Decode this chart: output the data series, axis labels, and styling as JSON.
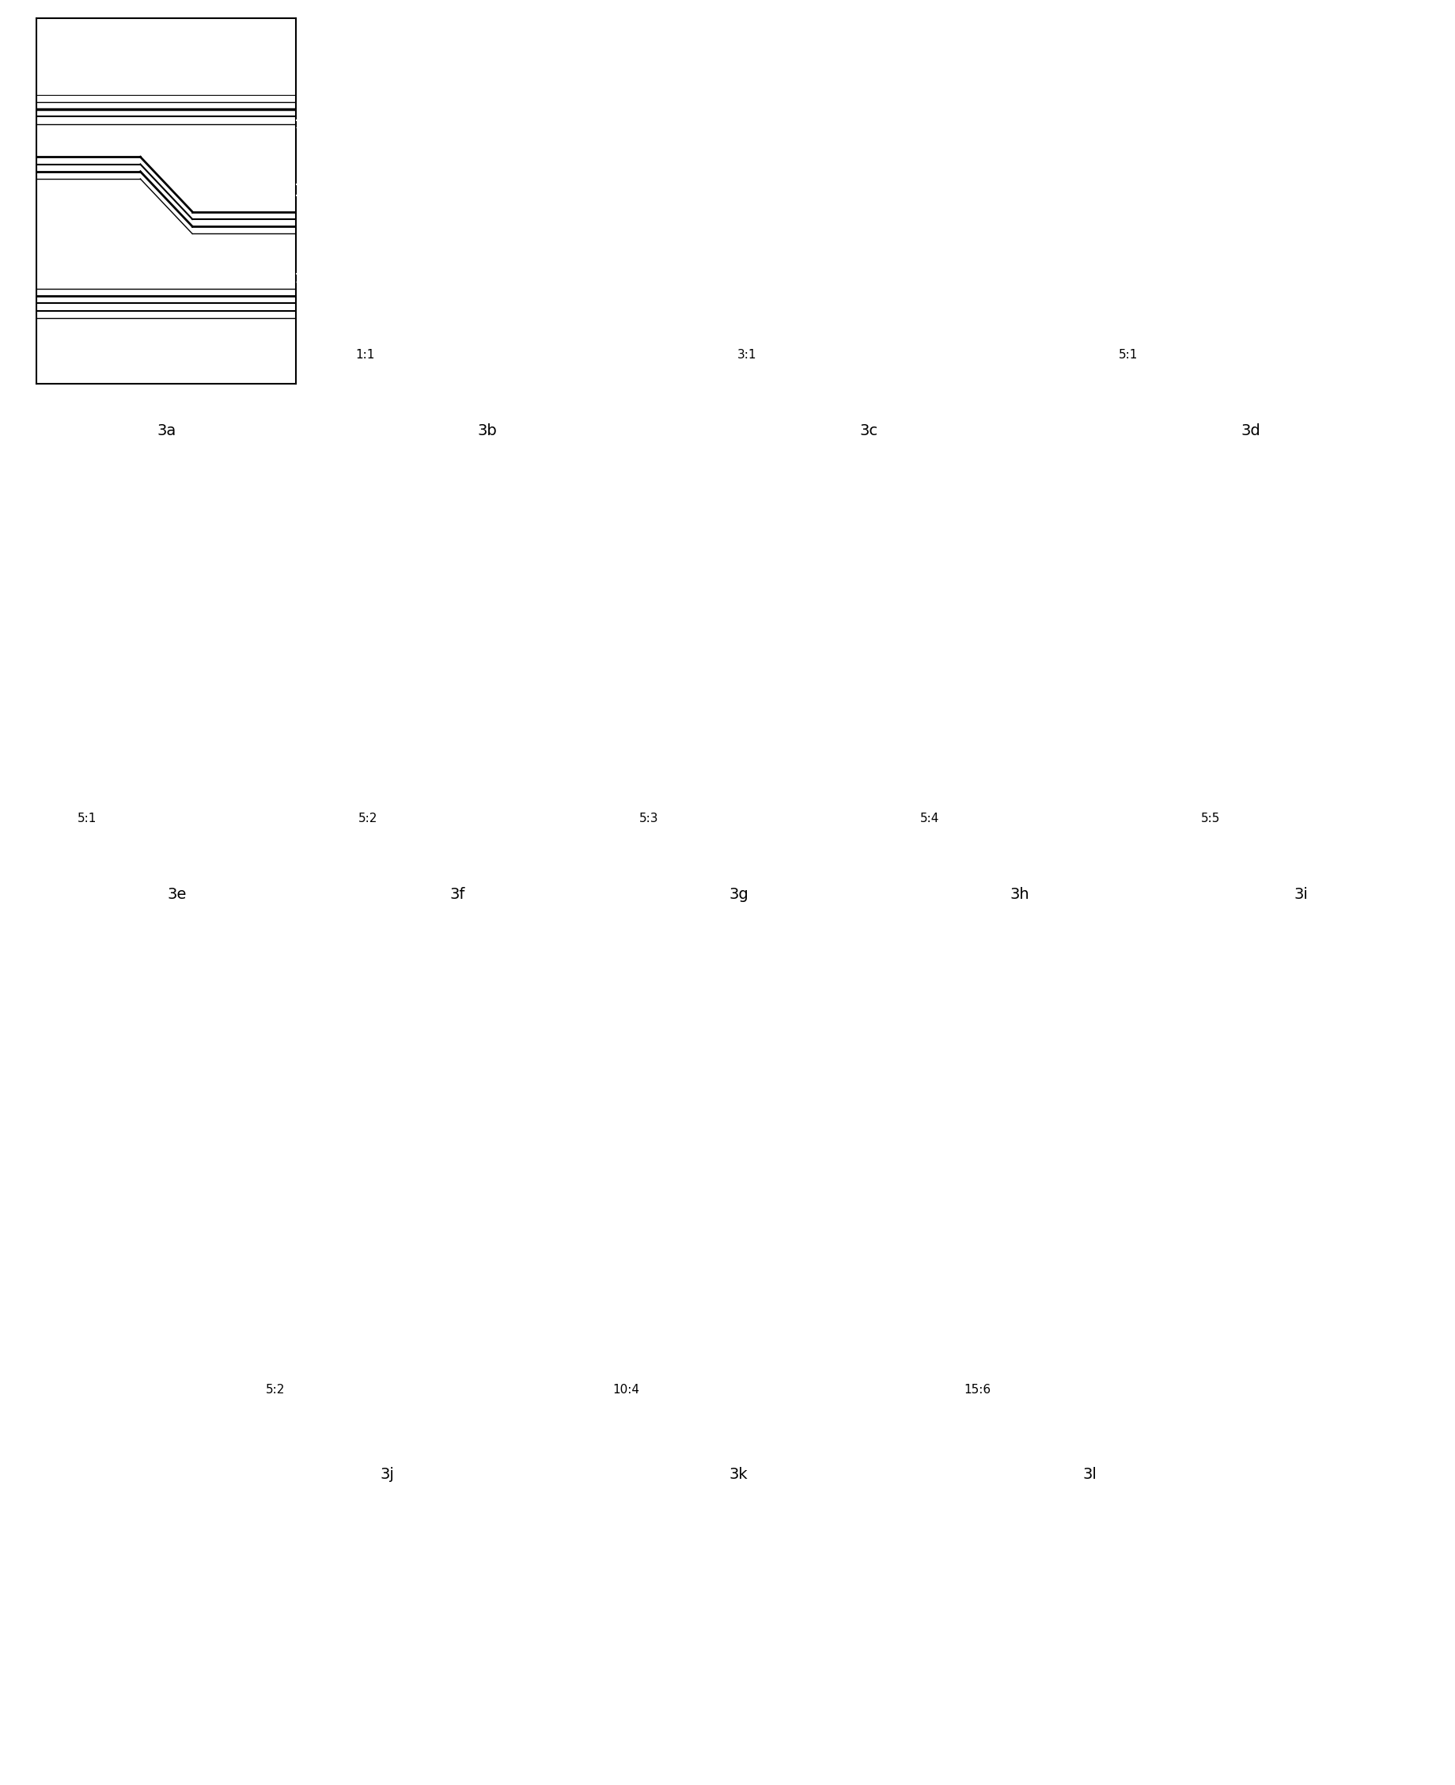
{
  "figure_width": 18.4,
  "figure_height": 22.56,
  "bg_color": "#ffffff",
  "row1_labels": [
    "3a",
    "3b",
    "3c",
    "3d"
  ],
  "row2_labels": [
    "3e",
    "3f",
    "3g",
    "3h",
    "3i"
  ],
  "row3_labels": [
    "3j",
    "3k",
    "3l"
  ],
  "row1_ratios": [
    null,
    "1:1",
    "3:1",
    "5:1"
  ],
  "row2_ratios": [
    "5:1",
    "5:2",
    "5:3",
    "5:4",
    "5:5"
  ],
  "row3_ratios": [
    "5:2",
    "10:4",
    "15:6"
  ],
  "panel_bg_black": "#000000",
  "panel_bg_white": "#ffffff",
  "line_white": "#ffffff",
  "line_black": "#000000",
  "label_fontsize": 14,
  "ratio_fontsize": 11
}
